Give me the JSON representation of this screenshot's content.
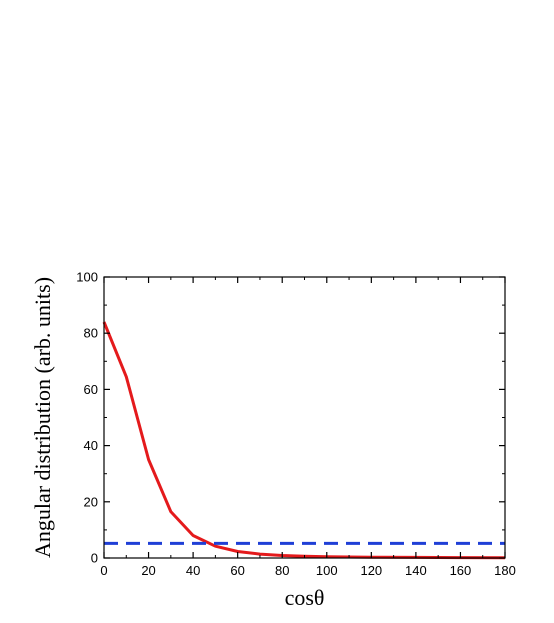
{
  "chart_data": {
    "type": "line",
    "title": "",
    "xlabel": "cosθ",
    "ylabel": "Angular distribution (arb. units)",
    "xlim": [
      0,
      180
    ],
    "ylim": [
      0,
      100
    ],
    "xticks": [
      0,
      20,
      40,
      60,
      80,
      100,
      120,
      140,
      160,
      180
    ],
    "yticks": [
      0,
      20,
      40,
      60,
      80,
      100
    ],
    "xtick_labels": [
      "0",
      "20",
      "40",
      "60",
      "80",
      "100",
      "120",
      "140",
      "160",
      "180"
    ],
    "ytick_labels": [
      "0",
      "20",
      "40",
      "60",
      "80",
      "100"
    ],
    "grid": false,
    "series": [
      {
        "color": "#e41a1c",
        "style": "solid",
        "x": [
          0,
          10,
          20,
          30,
          40,
          50,
          60,
          70,
          80,
          90,
          100,
          120,
          140,
          160,
          180
        ],
        "y": [
          84,
          64.5,
          35,
          16.5,
          8,
          4.2,
          2.3,
          1.4,
          0.9,
          0.6,
          0.45,
          0.3,
          0.2,
          0.15,
          0.1
        ]
      },
      {
        "color": "#1f3fd6",
        "style": "dashed",
        "x": [
          0,
          180
        ],
        "y": [
          5.2,
          5.2
        ]
      }
    ]
  }
}
